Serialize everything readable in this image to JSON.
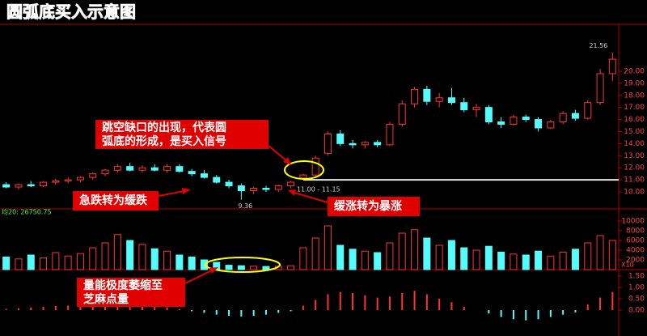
{
  "chart_data": [
    {
      "type": "candlestick",
      "title": "圆弧底买入示意图",
      "open": [
        10.6,
        10.4,
        10.6,
        10.5,
        10.8,
        10.9,
        11.0,
        11.2,
        11.5,
        11.8,
        12.1,
        11.8,
        12.0,
        11.8,
        12.1,
        11.7,
        11.5,
        11.2,
        10.8,
        10.5,
        10.1,
        10.3,
        10.2,
        10.5,
        11.15,
        11.4,
        13.2,
        14.8,
        14.0,
        13.9,
        14.1,
        13.9,
        15.6,
        17.3,
        18.5,
        17.5,
        17.8,
        17.4,
        16.8,
        17.0,
        15.8,
        15.6,
        16.2,
        16.0,
        15.3,
        15.8,
        16.5,
        16.1,
        17.4,
        19.8
      ],
      "high": [
        10.8,
        10.7,
        10.9,
        10.9,
        11.1,
        11.2,
        11.3,
        11.6,
        11.9,
        12.3,
        12.4,
        12.2,
        12.3,
        12.3,
        12.3,
        11.9,
        11.8,
        11.4,
        11.0,
        10.7,
        10.4,
        10.5,
        10.6,
        10.9,
        11.5,
        13.0,
        15.0,
        15.1,
        14.3,
        14.2,
        14.3,
        15.8,
        17.6,
        18.7,
        18.8,
        18.2,
        18.6,
        17.8,
        17.3,
        17.2,
        16.2,
        16.4,
        16.4,
        16.2,
        16.0,
        16.7,
        16.8,
        17.6,
        20.2,
        21.56
      ],
      "low": [
        10.3,
        10.2,
        10.4,
        10.4,
        10.6,
        10.7,
        10.8,
        11.0,
        11.3,
        11.6,
        11.7,
        11.6,
        11.7,
        11.6,
        11.6,
        11.3,
        11.1,
        10.7,
        10.3,
        9.36,
        9.8,
        10.0,
        10.0,
        10.3,
        11.0,
        11.3,
        13.0,
        13.8,
        13.6,
        13.6,
        13.7,
        13.8,
        15.4,
        17.0,
        17.2,
        17.0,
        17.2,
        16.6,
        16.2,
        15.6,
        15.3,
        15.5,
        15.8,
        15.0,
        15.2,
        15.6,
        15.9,
        16.0,
        17.2,
        19.2
      ],
      "close": [
        10.4,
        10.6,
        10.5,
        10.8,
        10.9,
        11.0,
        11.2,
        11.5,
        11.8,
        12.1,
        11.8,
        12.0,
        11.8,
        12.1,
        11.7,
        11.5,
        11.2,
        10.8,
        10.5,
        10.1,
        10.3,
        10.2,
        10.5,
        10.8,
        11.4,
        12.8,
        14.8,
        14.0,
        13.9,
        14.1,
        13.9,
        15.6,
        17.3,
        18.5,
        17.5,
        17.8,
        17.4,
        16.8,
        17.0,
        15.8,
        15.6,
        16.2,
        16.0,
        15.3,
        15.8,
        16.5,
        16.1,
        17.4,
        19.8,
        21.0
      ],
      "up_color": "#ff3232",
      "down_color": "#54fcfc",
      "ylim": [
        8.59,
        23.89
      ],
      "yticks": [
        {
          "value": 10,
          "label": "10.00"
        },
        {
          "value": 11,
          "label": "11.00"
        },
        {
          "value": 12,
          "label": "12.00"
        },
        {
          "value": 13,
          "label": "13.00"
        },
        {
          "value": 14,
          "label": "14.00"
        },
        {
          "value": 15,
          "label": "15.00"
        },
        {
          "value": 16,
          "label": "16.00"
        },
        {
          "value": 17,
          "label": "17.00"
        },
        {
          "value": 18,
          "label": "18.00"
        },
        {
          "value": 19,
          "label": "19.00"
        },
        {
          "value": 20,
          "label": "20.00"
        }
      ],
      "high_label": "21.56",
      "low_label": "9.36",
      "gap_label": "11.00 - 11.15",
      "gap_line": 11.0,
      "annotations": [
        {
          "lines": [
            "跳空缺口的出现，代表圆",
            "弧底的形成，是买入信号"
          ]
        },
        {
          "lines": [
            "急跌转为缓跌"
          ]
        },
        {
          "lines": [
            "缓涨转为暴涨"
          ]
        },
        {
          "lines": [
            "量能极度萎缩至",
            "芝麻点量"
          ]
        }
      ]
    },
    {
      "type": "bar",
      "label": "均20: 26750.75",
      "scale_label": "X10",
      "values": [
        2600,
        2200,
        3000,
        2400,
        3500,
        2800,
        3300,
        4500,
        5500,
        7200,
        6000,
        5200,
        4300,
        3800,
        3000,
        2600,
        2000,
        1500,
        900,
        800,
        700,
        650,
        700,
        800,
        4500,
        6500,
        9000,
        5000,
        4200,
        3800,
        3500,
        5500,
        7500,
        8200,
        6500,
        5000,
        6000,
        4500,
        4000,
        4800,
        3600,
        3200,
        3000,
        3800,
        2800,
        3600,
        4200,
        5500,
        7000,
        6000
      ],
      "ylim": [
        0,
        11833
      ],
      "yticks": [
        2000,
        4000,
        6000,
        8000,
        10000
      ]
    },
    {
      "type": "bar",
      "values": [
        0.05,
        0.08,
        0.12,
        0.15,
        0.18,
        0.2,
        0.25,
        0.3,
        0.38,
        0.42,
        0.35,
        0.28,
        0.2,
        0.12,
        0.05,
        -0.05,
        -0.12,
        -0.2,
        -0.25,
        -0.28,
        -0.25,
        -0.2,
        -0.12,
        -0.05,
        0.2,
        0.45,
        0.7,
        0.8,
        0.75,
        0.65,
        0.55,
        0.6,
        0.75,
        0.85,
        0.7,
        0.5,
        0.35,
        0.15,
        0.0,
        -0.15,
        -0.3,
        -0.4,
        -0.45,
        -0.4,
        -0.3,
        -0.2,
        -0.1,
        0.25,
        0.55,
        0.8
      ],
      "ylim": [
        -0.96,
        1.71
      ],
      "yticks": [
        {
          "value": 0,
          "label": "0.00"
        },
        {
          "value": 0.5,
          "label": "0.50"
        },
        {
          "value": 1,
          "label": "1.00"
        },
        {
          "value": 1.5,
          "label": "1.50"
        }
      ]
    }
  ]
}
